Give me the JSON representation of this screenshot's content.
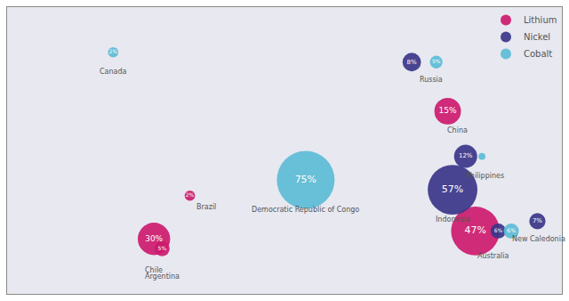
{
  "chart_data": {
    "type": "bubble",
    "xlim": [
      -160,
      180
    ],
    "ylim": [
      -58,
      88
    ],
    "tick_labels": false,
    "grid": false,
    "legend": "upper right",
    "data_labels": true,
    "series": [
      {
        "name": "Lithium",
        "color": "#cc1a6e",
        "x": [
          -70,
          -48,
          -65,
          110,
          127
        ],
        "y": [
          -30,
          -8,
          -35,
          35,
          -26
        ],
        "size": [
          28,
          9,
          13,
          23,
          42
        ],
        "values": [
          30,
          2,
          5,
          15,
          47
        ],
        "value_labels": [
          "30%",
          "2%",
          "5%",
          "15%",
          "47%"
        ]
      },
      {
        "name": "Nickel",
        "color": "#3b3589",
        "x": [
          88,
          121,
          113,
          165,
          141
        ],
        "y": [
          60,
          12,
          -5,
          -21,
          -26
        ],
        "size": [
          16,
          20,
          43,
          14,
          13
        ],
        "values": [
          8,
          12,
          57,
          7,
          6
        ],
        "value_labels": [
          "8%",
          "12%",
          "57%",
          "7%",
          "6%"
        ]
      },
      {
        "name": "Cobalt",
        "color": "#5bbcd6",
        "x": [
          -95,
          23,
          103,
          131,
          149
        ],
        "y": [
          65,
          0,
          60,
          12,
          -26
        ],
        "size": [
          9,
          50,
          11,
          6,
          13
        ],
        "values": [
          2,
          75,
          5,
          null,
          6
        ],
        "value_labels": [
          "2%",
          "75%",
          "5%",
          null,
          "6%"
        ]
      }
    ],
    "annotations": [
      {
        "text": "Canada",
        "x": -95,
        "y": 58
      },
      {
        "text": "Chile",
        "x": -70,
        "y": -43
      },
      {
        "text": "Brazil",
        "x": -38,
        "y": -11
      },
      {
        "text": "Argentina",
        "x": -65,
        "y": -46
      },
      {
        "text": "Democratic Republic of Congo",
        "x": 23,
        "y": -12
      },
      {
        "text": "Russia",
        "x": 100,
        "y": 54
      },
      {
        "text": "China",
        "x": 116,
        "y": 28
      },
      {
        "text": "Philippines",
        "x": 133,
        "y": 5
      },
      {
        "text": "Indonesia",
        "x": 113,
        "y": -17
      },
      {
        "text": "New Caledonia",
        "x": 166,
        "y": -27
      },
      {
        "text": "Australia",
        "x": 138,
        "y": -36
      }
    ]
  }
}
